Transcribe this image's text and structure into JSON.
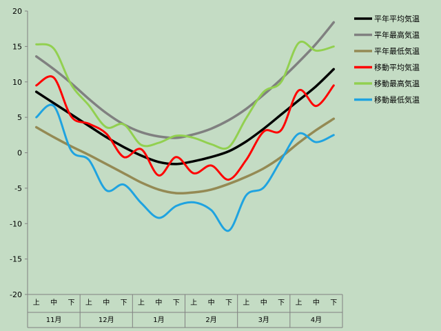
{
  "chart_data": {
    "type": "line",
    "ylim": [
      -20,
      20
    ],
    "y_ticks": [
      "20",
      "15",
      "10",
      "5",
      "0",
      "-5",
      "-10",
      "-15",
      "-20"
    ],
    "grid": false,
    "legend_position": "right",
    "months": [
      "11月",
      "12月",
      "1月",
      "2月",
      "3月",
      "4月"
    ],
    "sub_labels": [
      "上",
      "中",
      "下"
    ],
    "x": [
      "11月上",
      "11月中",
      "11月下",
      "12月上",
      "12月中",
      "12月下",
      "1月上",
      "1月中",
      "1月下",
      "2月上",
      "2月中",
      "2月下",
      "3月上",
      "3月中",
      "3月下",
      "4月上",
      "4月中",
      "4月下"
    ],
    "series": [
      {
        "name": "平年平均気温",
        "color": "#000000",
        "width": 3.5,
        "values": [
          8.6,
          7.0,
          5.4,
          3.8,
          2.2,
          0.8,
          -0.4,
          -1.3,
          -1.6,
          -1.2,
          -0.6,
          0.2,
          1.6,
          3.4,
          5.4,
          7.4,
          9.4,
          11.8
        ]
      },
      {
        "name": "平年最高気温",
        "color": "#808080",
        "width": 3.5,
        "values": [
          13.6,
          11.8,
          9.8,
          7.6,
          5.6,
          4.0,
          2.9,
          2.3,
          2.1,
          2.6,
          3.4,
          4.6,
          6.2,
          8.2,
          10.4,
          12.8,
          15.4,
          18.4
        ]
      },
      {
        "name": "平年最低気温",
        "color": "#948a54",
        "width": 3.5,
        "values": [
          3.6,
          2.2,
          0.9,
          -0.3,
          -1.6,
          -2.9,
          -4.2,
          -5.2,
          -5.7,
          -5.6,
          -5.2,
          -4.4,
          -3.4,
          -2.2,
          -0.6,
          1.4,
          3.2,
          4.8
        ]
      },
      {
        "name": "移動平均気温",
        "color": "#ff0000",
        "width": 3,
        "values": [
          9.5,
          10.6,
          5.1,
          4.1,
          2.7,
          -0.6,
          0.5,
          -3.2,
          -0.6,
          -2.9,
          -1.8,
          -3.8,
          -1.0,
          3.0,
          3.2,
          8.8,
          6.6,
          9.5
        ]
      },
      {
        "name": "移動最高気温",
        "color": "#92d050",
        "width": 3,
        "values": [
          15.3,
          14.7,
          9.6,
          6.7,
          3.6,
          4.0,
          1.1,
          1.4,
          2.4,
          2.1,
          1.2,
          0.8,
          4.9,
          8.6,
          10.0,
          15.5,
          14.4,
          15.0
        ]
      },
      {
        "name": "移動最低気温",
        "color": "#1fa3e0",
        "width": 3,
        "values": [
          5.0,
          6.6,
          0.3,
          -1.0,
          -5.3,
          -4.5,
          -7.1,
          -9.2,
          -7.5,
          -7.0,
          -8.1,
          -11.0,
          -6.0,
          -4.9,
          -1.0,
          2.7,
          1.5,
          2.5
        ]
      }
    ]
  }
}
